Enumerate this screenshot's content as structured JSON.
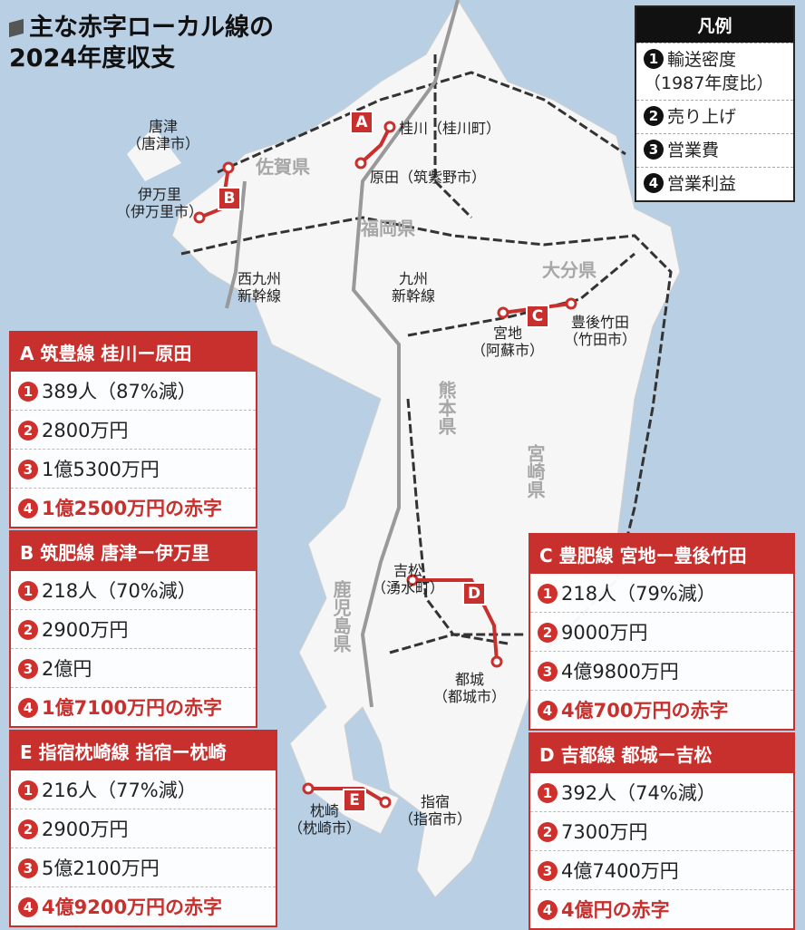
{
  "title": {
    "line1": "主な赤字ローカル線の",
    "line2": "2024年度収支"
  },
  "legend": {
    "header": "凡例",
    "items": [
      {
        "n": "1",
        "label": "輸送密度",
        "sub": "（1987年度比）"
      },
      {
        "n": "2",
        "label": "売り上げ"
      },
      {
        "n": "3",
        "label": "営業費"
      },
      {
        "n": "4",
        "label": "営業利益"
      }
    ]
  },
  "colors": {
    "accent": "#c8302d",
    "sea": "#b9cfe4",
    "land": "#f6f6f6"
  },
  "panels": {
    "A": {
      "header": "A 筑豊線 桂川ー原田",
      "r1": "389人（87%減）",
      "r2": "2800万円",
      "r3": "1億5300万円",
      "r4": "1億2500万円の赤字"
    },
    "B": {
      "header": "B 筑肥線 唐津ー伊万里",
      "r1": "218人（70%減）",
      "r2": "2900万円",
      "r3": "2億円",
      "r4": "1億7100万円の赤字"
    },
    "C": {
      "header": "C 豊肥線 宮地ー豊後竹田",
      "r1": "218人（79%減）",
      "r2": "9000万円",
      "r3": "4億9800万円",
      "r4": "4億700万円の赤字"
    },
    "D": {
      "header": "D 吉都線 都城ー吉松",
      "r1": "392人（74%減）",
      "r2": "7300万円",
      "r3": "4億7400万円",
      "r4": "4億円の赤字"
    },
    "E": {
      "header": "E 指宿枕崎線 指宿ー枕崎",
      "r1": "216人（77%減）",
      "r2": "2900万円",
      "r3": "5億2100万円",
      "r4": "4億9200万円の赤字"
    }
  },
  "map": {
    "prefs": {
      "saga": "佐賀県",
      "fukuoka": "福岡県",
      "oita": "大分県",
      "kumamoto": "熊本県",
      "miyazaki": "宮崎県",
      "kagoshima": "鹿児島県"
    },
    "stations": {
      "karatsu": "唐津",
      "karatsu_city": "（唐津市）",
      "imari": "伊万里",
      "imari_city": "（伊万里市）",
      "keisen": "桂川（桂川町）",
      "harada": "原田（筑紫野市）",
      "miyaji": "宮地",
      "miyaji_city": "（阿蘇市）",
      "bungo": "豊後竹田",
      "bungo_city": "（竹田市）",
      "yoshimatsu": "吉松",
      "yoshimatsu_city": "（湧水町）",
      "miyakonojo": "都城",
      "miyakonojo_city": "（都城市）",
      "ibusuki": "指宿",
      "ibusuki_city": "（指宿市）",
      "makurazaki": "枕崎",
      "makurazaki_city": "（枕崎市）"
    },
    "lines": {
      "nishi": "西九州",
      "nishi2": "新幹線",
      "kyushu": "九州",
      "kyushu2": "新幹線"
    },
    "markers": [
      "A",
      "B",
      "C",
      "D",
      "E"
    ]
  }
}
